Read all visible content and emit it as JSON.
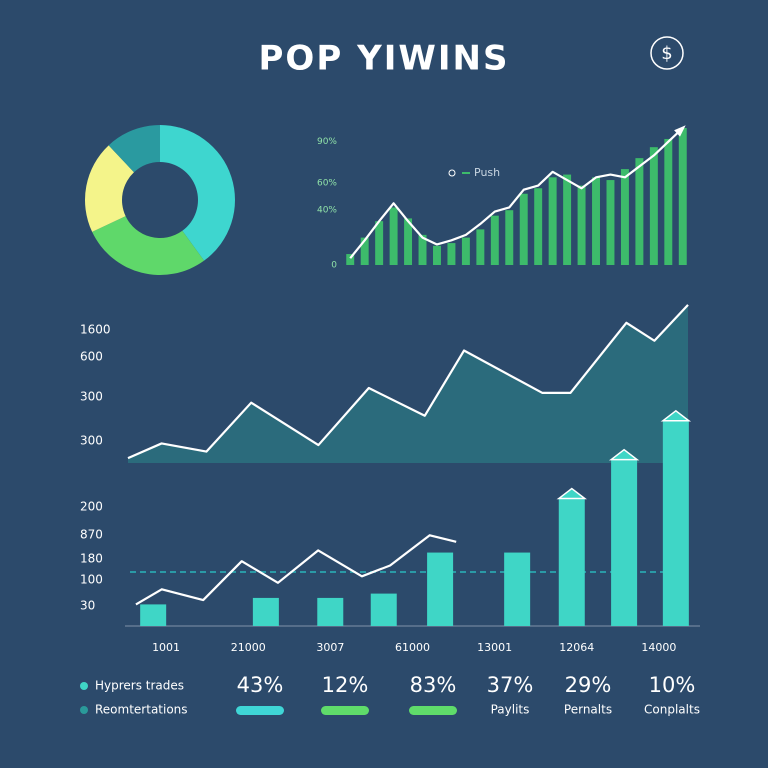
{
  "header": {
    "title": "POP YIWINS",
    "icon": "$"
  },
  "chart_data": [
    {
      "type": "pie",
      "donut": true,
      "values": [
        40,
        28,
        20,
        12
      ],
      "colors": [
        "#3ed6cf",
        "#5fd86a",
        "#f4f48a",
        "#2a9aa0"
      ]
    },
    {
      "type": "bar",
      "categories": [
        null,
        null,
        null,
        null,
        null,
        null,
        null,
        null,
        null,
        null,
        null,
        null,
        null,
        null,
        null,
        null,
        null,
        null,
        null,
        null,
        null,
        null,
        null,
        null
      ],
      "ylim": [
        0,
        100
      ],
      "yticks": [
        0,
        {
          "value": 40,
          "label": "40%"
        },
        {
          "value": 60,
          "label": "60%"
        },
        {
          "value": 90,
          "label": "90%"
        }
      ],
      "grid": false,
      "series": [
        {
          "name": "Push",
          "color": "#3dbb6b",
          "values": [
            8,
            20,
            32,
            42,
            34,
            22,
            14,
            16,
            20,
            26,
            36,
            40,
            52,
            56,
            64,
            66,
            58,
            64,
            62,
            70,
            78,
            86,
            92,
            100
          ]
        },
        {
          "kind": "line",
          "color": "#ffffff",
          "values": [
            5,
            18,
            32,
            45,
            32,
            20,
            15,
            18,
            22,
            30,
            39,
            42,
            55,
            58,
            68,
            62,
            56,
            64,
            66,
            64,
            72,
            80,
            90,
            100
          ]
        }
      ]
    },
    {
      "type": "area",
      "axis_labels": [
        "1600",
        "600",
        "300",
        "300"
      ],
      "xlim": [
        0,
        100
      ],
      "ylim": [
        0,
        100
      ],
      "x": [
        0,
        6,
        14,
        22,
        34,
        43,
        53,
        60,
        74,
        79,
        89,
        94,
        100
      ],
      "values": [
        3,
        12,
        7,
        37,
        11,
        46,
        29,
        69,
        43,
        43,
        86,
        75,
        97
      ],
      "color": "#2b6b7c"
    },
    {
      "type": "bar",
      "axis_labels": [
        "200",
        "870",
        "180",
        "100",
        "30"
      ],
      "x_labels": [
        "1001",
        "21000",
        "3007",
        "61000",
        "13001",
        "12064",
        "14000"
      ],
      "xlim": [
        0,
        100
      ],
      "ylim": [
        0,
        100
      ],
      "reference_line": 25,
      "series": [
        {
          "color": "#3fd6c6",
          "x": [
            4.9,
            24.5,
            35.7,
            45,
            54.8,
            68.2,
            77.7,
            86.8,
            95.8
          ],
          "values": [
            10,
            13,
            13,
            15,
            34,
            34,
            59,
            77,
            95
          ]
        },
        {
          "kind": "line",
          "color": "#ffffff",
          "x": [
            1.9,
            6.4,
            13.6,
            20.3,
            26.6,
            33.6,
            41.2,
            46.1,
            53,
            57.6
          ],
          "values": [
            10,
            17,
            12,
            30,
            20,
            35,
            23,
            28,
            42,
            39
          ]
        }
      ]
    }
  ],
  "stats": {
    "legend": [
      {
        "label": "Hyprers trades",
        "color": "#3fd6c6"
      },
      {
        "label": "Reomtertations",
        "color": "#2a9a9a"
      }
    ],
    "items": [
      {
        "value": "43%",
        "color": "#3fd6d6"
      },
      {
        "value": "12%",
        "color": "#5fdc6a"
      },
      {
        "value": "83%",
        "color": "#5fdc6a"
      },
      {
        "value": "37%",
        "label": "Paylits"
      },
      {
        "value": "29%",
        "label": "Pernalts"
      },
      {
        "value": "10%",
        "label": "Conplalts"
      }
    ]
  }
}
